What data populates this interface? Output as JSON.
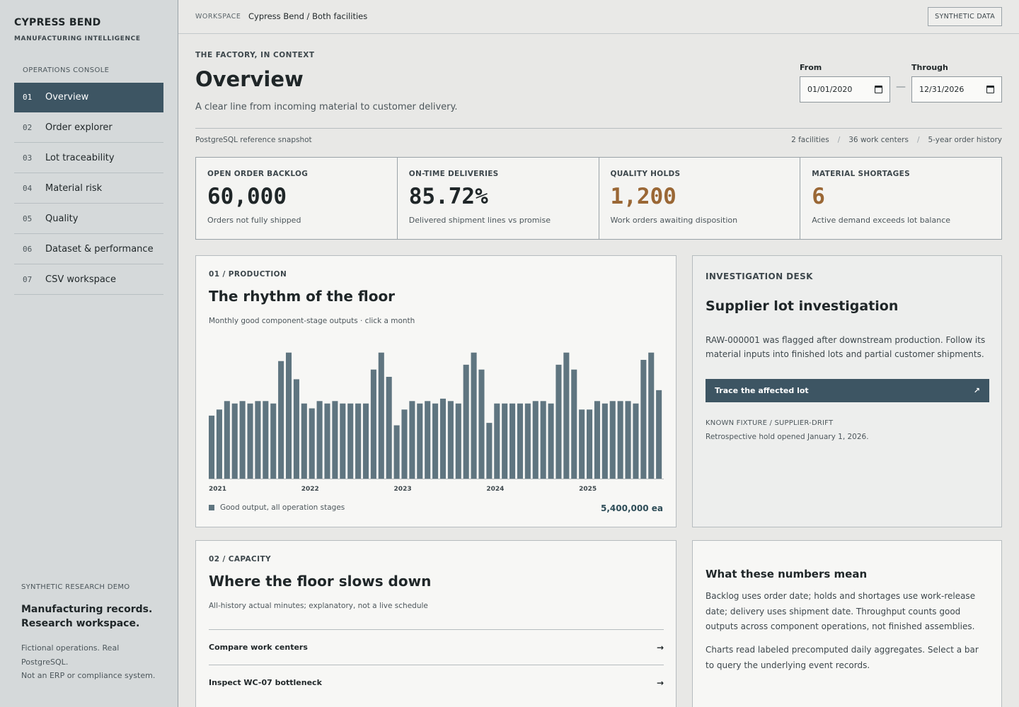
{
  "brand": {
    "name": "CYPRESS BEND",
    "subtitle": "MANUFACTURING INTELLIGENCE"
  },
  "sidebar": {
    "section_label": "OPERATIONS CONSOLE",
    "items": [
      {
        "num": "01",
        "label": "Overview",
        "active": true
      },
      {
        "num": "02",
        "label": "Order explorer"
      },
      {
        "num": "03",
        "label": "Lot traceability"
      },
      {
        "num": "04",
        "label": "Material risk"
      },
      {
        "num": "05",
        "label": "Quality"
      },
      {
        "num": "06",
        "label": "Dataset & performance"
      },
      {
        "num": "07",
        "label": "CSV workspace"
      }
    ],
    "footer": {
      "eyebrow": "SYNTHETIC RESEARCH DEMO",
      "headline_1": "Manufacturing records.",
      "headline_2": "Research workspace.",
      "line_1": "Fictional operations. Real",
      "line_2": "PostgreSQL.",
      "line_3": "Not an ERP or compliance system."
    }
  },
  "topbar": {
    "workspace_label": "WORKSPACE",
    "path": "Cypress Bend / Both facilities",
    "badge": "SYNTHETIC DATA"
  },
  "header": {
    "eyebrow": "THE FACTORY, IN CONTEXT",
    "title": "Overview",
    "subtitle": "A clear line from incoming material to customer delivery.",
    "from_label": "From",
    "from_value": "01/01/2020",
    "through_label": "Through",
    "through_value": "12/31/2026",
    "dash": "—"
  },
  "meta": {
    "source": "PostgreSQL reference snapshot",
    "facilities": "2 facilities",
    "work_centers": "36 work centers",
    "history": "5-year order history",
    "sep": "/"
  },
  "kpis": [
    {
      "label": "OPEN ORDER BACKLOG",
      "value": "60,000",
      "desc": "Orders not fully shipped",
      "warn": false
    },
    {
      "label": "ON-TIME DELIVERIES",
      "value": "85.72%",
      "desc": "Delivered shipment lines vs promise",
      "warn": false
    },
    {
      "label": "QUALITY HOLDS",
      "value": "1,200",
      "desc": "Work orders awaiting disposition",
      "warn": true
    },
    {
      "label": "MATERIAL SHORTAGES",
      "value": "6",
      "desc": "Active demand exceeds lot balance",
      "warn": true
    }
  ],
  "production": {
    "eyebrow": "01 / PRODUCTION",
    "title": "The rhythm of the floor",
    "subtitle": "Monthly good component-stage outputs · click a month",
    "legend": "Good output, all operation stages",
    "total": "5,400,000 ea",
    "colors": {
      "bar": "#5f7580"
    }
  },
  "chart_data": {
    "type": "bar",
    "title": "The rhythm of the floor",
    "x_tick_labels": [
      "2021",
      "2022",
      "2023",
      "2024",
      "2025"
    ],
    "x_tick_start_index": [
      0,
      12,
      24,
      36,
      48
    ],
    "series": [
      {
        "name": "Good output, all operation stages",
        "values": [
          52,
          57,
          64,
          62,
          64,
          62,
          64,
          64,
          62,
          97,
          104,
          82,
          62,
          58,
          64,
          62,
          64,
          62,
          62,
          62,
          62,
          90,
          104,
          84,
          44,
          57,
          64,
          62,
          64,
          62,
          66,
          64,
          62,
          94,
          104,
          90,
          46,
          62,
          62,
          62,
          62,
          62,
          64,
          64,
          62,
          94,
          104,
          90,
          57,
          57,
          64,
          62,
          64,
          64,
          64,
          62,
          98,
          104,
          73
        ]
      }
    ],
    "ylim": [
      0,
      105
    ],
    "grid": false,
    "legend_position": "bottom-left"
  },
  "investigation": {
    "eyebrow": "INVESTIGATION DESK",
    "title": "Supplier lot investigation",
    "text": "RAW-000001 was flagged after downstream production. Follow its material inputs into finished lots and partial customer shipments.",
    "button": "Trace the affected lot",
    "button_icon": "↗",
    "fixture": "KNOWN FIXTURE / SUPPLIER-DRIFT",
    "hold": "Retrospective hold opened January 1, 2026."
  },
  "capacity": {
    "eyebrow": "02 / CAPACITY",
    "title": "Where the floor slows down",
    "subtitle": "All-history actual minutes; explanatory, not a live schedule",
    "links": [
      {
        "label": "Compare work centers",
        "arrow": "→"
      },
      {
        "label": "Inspect WC-07 bottleneck",
        "arrow": "→"
      }
    ]
  },
  "meaning": {
    "title": "What these numbers mean",
    "p1": "Backlog uses order date; holds and shortages use work-release date; delivery uses shipment date. Throughput counts good outputs across component operations, not finished assemblies.",
    "p2": "Charts read labeled precomputed daily aggregates. Select a bar to query the underlying event records."
  }
}
